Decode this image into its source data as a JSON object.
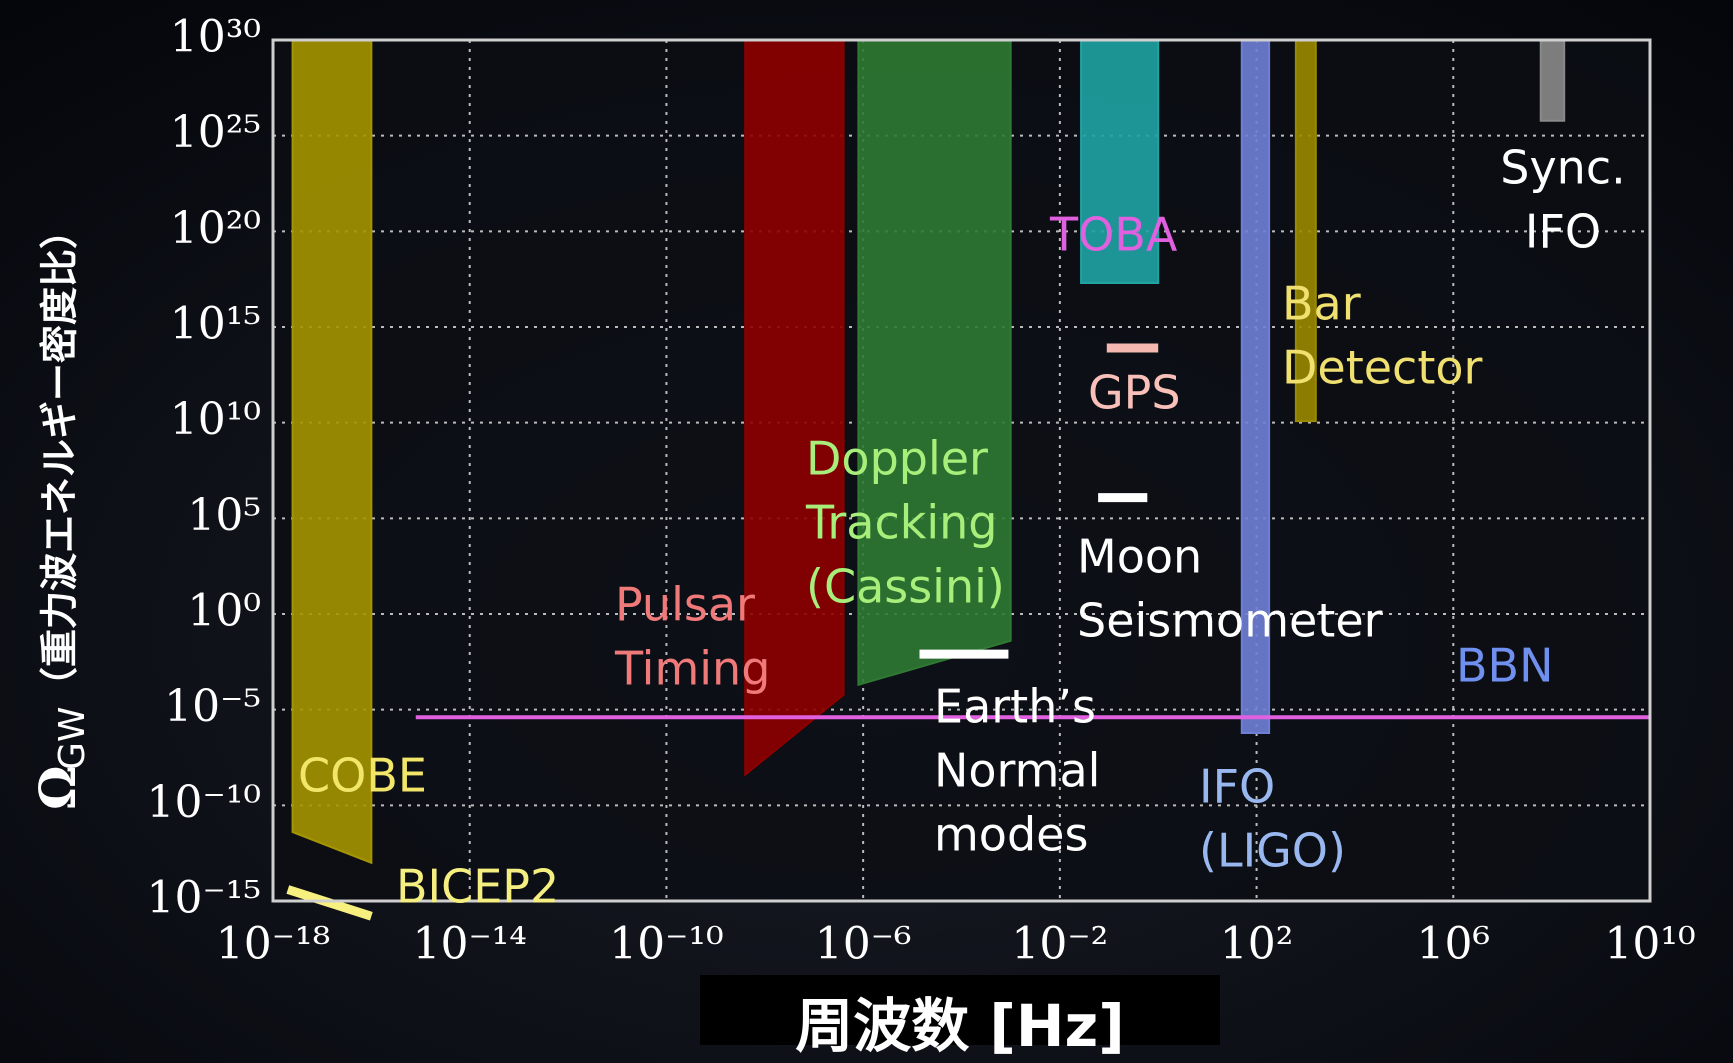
{
  "chart_data": {
    "type": "region",
    "xlabel": "周波数 [Hz]",
    "ylabel": {
      "symbol": "Ω",
      "subscript": "GW",
      "text": "（重力波エネルギー密度比）"
    },
    "xlog": true,
    "ylog": true,
    "grid": true,
    "xlim": [
      1e-18,
      10000000000.0
    ],
    "ylim": [
      1e-15,
      1e+30
    ],
    "xticks": [
      {
        "value": 1e-18,
        "label": "10⁻¹⁸"
      },
      {
        "value": 1e-14,
        "label": "10⁻¹⁴"
      },
      {
        "value": 1e-10,
        "label": "10⁻¹⁰"
      },
      {
        "value": 1e-06,
        "label": "10⁻⁶"
      },
      {
        "value": 0.01,
        "label": "10⁻²"
      },
      {
        "value": 100,
        "label": "10²"
      },
      {
        "value": 1000000.0,
        "label": "10⁶"
      },
      {
        "value": 10000000000.0,
        "label": "10¹⁰"
      }
    ],
    "yticks": [
      {
        "value": 1e+30,
        "label": "10³⁰"
      },
      {
        "value": 1e+25,
        "label": "10²⁵"
      },
      {
        "value": 1e+20,
        "label": "10²⁰"
      },
      {
        "value": 1000000000000000.0,
        "label": "10¹⁵"
      },
      {
        "value": 10000000000.0,
        "label": "10¹⁰"
      },
      {
        "value": 100000.0,
        "label": "10⁵"
      },
      {
        "value": 1,
        "label": "10⁰"
      },
      {
        "value": 1e-05,
        "label": "10⁻⁵"
      },
      {
        "value": 1e-10,
        "label": "10⁻¹⁰"
      },
      {
        "value": 1e-15,
        "label": "10⁻¹⁵"
      }
    ],
    "series": [
      {
        "lines": [
          "COBE"
        ],
        "kind": "region",
        "color": "#a59500",
        "label_color": "#f2e66a",
        "x": [
          2.5e-18,
          1e-16,
          1e-16,
          2.5e-18
        ],
        "y": [
          1e+30,
          1e+30,
          1e-13,
          4e-12
        ]
      },
      {
        "lines": [
          "BICEP2"
        ],
        "kind": "segment",
        "color": "#f8f07e",
        "label_color": "#f5ee80",
        "x": [
          2e-18,
          1e-16
        ],
        "y": [
          4e-15,
          1.6e-16
        ]
      },
      {
        "lines": [
          "Pulsar",
          "Timing"
        ],
        "kind": "region",
        "color": "#8e0000",
        "label_color": "#f07a7a",
        "x": [
          4e-09,
          4e-07,
          4e-07,
          4e-09
        ],
        "y": [
          1e+30,
          1e+30,
          6e-05,
          4e-09
        ]
      },
      {
        "lines": [
          "Doppler",
          "Tracking",
          "(Cassini)"
        ],
        "kind": "region",
        "color": "#2f7a33",
        "label_color": "#a8ee7a",
        "x": [
          8e-07,
          0.001,
          0.001,
          8e-07
        ],
        "y": [
          1e+30,
          1e+30,
          0.04,
          0.0002
        ]
      },
      {
        "lines": [
          "Earth’s",
          "Normal",
          "modes"
        ],
        "kind": "segment",
        "color": "#ffffff",
        "label_color": "#ffffff",
        "x": [
          1.4e-05,
          0.0009
        ],
        "y": [
          0.008,
          0.008
        ]
      },
      {
        "lines": [
          "TOBA"
        ],
        "kind": "region",
        "color": "#1fa3a3",
        "label_color": "#e060e0",
        "x": [
          0.027,
          1,
          1,
          0.027
        ],
        "y": [
          1e+30,
          1e+30,
          2e+17,
          2e+17
        ]
      },
      {
        "lines": [
          "GPS"
        ],
        "kind": "segment",
        "color": "#f4b8b0",
        "label_color": "#f8c0b8",
        "x": [
          0.09,
          1
        ],
        "y": [
          80000000000000.0,
          80000000000000.0
        ]
      },
      {
        "lines": [
          "Moon",
          "Seismometer"
        ],
        "kind": "segment",
        "color": "#ffffff",
        "label_color": "#ffffff",
        "x": [
          0.06,
          0.6
        ],
        "y": [
          1200000.0,
          1200000.0
        ]
      },
      {
        "lines": [
          "IFO",
          "(LIGO)"
        ],
        "kind": "region",
        "color": "#6f7fd6",
        "label_color": "#9ab8f0",
        "x": [
          50,
          180,
          180,
          50
        ],
        "y": [
          1e+30,
          1e+30,
          6e-07,
          6e-07
        ]
      },
      {
        "lines": [
          "Bar",
          "Detector"
        ],
        "kind": "region",
        "color": "#9a8a00",
        "label_color": "#f0e070",
        "x": [
          630,
          1600,
          1600,
          630
        ],
        "y": [
          1e+30,
          1e+30,
          12000000000.0,
          12000000000.0
        ]
      },
      {
        "lines": [
          "Sync.",
          "IFO"
        ],
        "kind": "region",
        "color": "#8a8a8a",
        "label_color": "#ffffff",
        "x": [
          60000000.0,
          180000000.0,
          180000000.0,
          60000000.0
        ],
        "y": [
          1e+30,
          1e+30,
          6e+25,
          6e+25
        ]
      },
      {
        "lines": [
          "BBN"
        ],
        "kind": "segment",
        "color": "#e060e0",
        "label_color": "#7090f0",
        "x": [
          8e-16,
          10000000000.0
        ],
        "y": [
          4e-06,
          4e-06
        ]
      }
    ]
  }
}
